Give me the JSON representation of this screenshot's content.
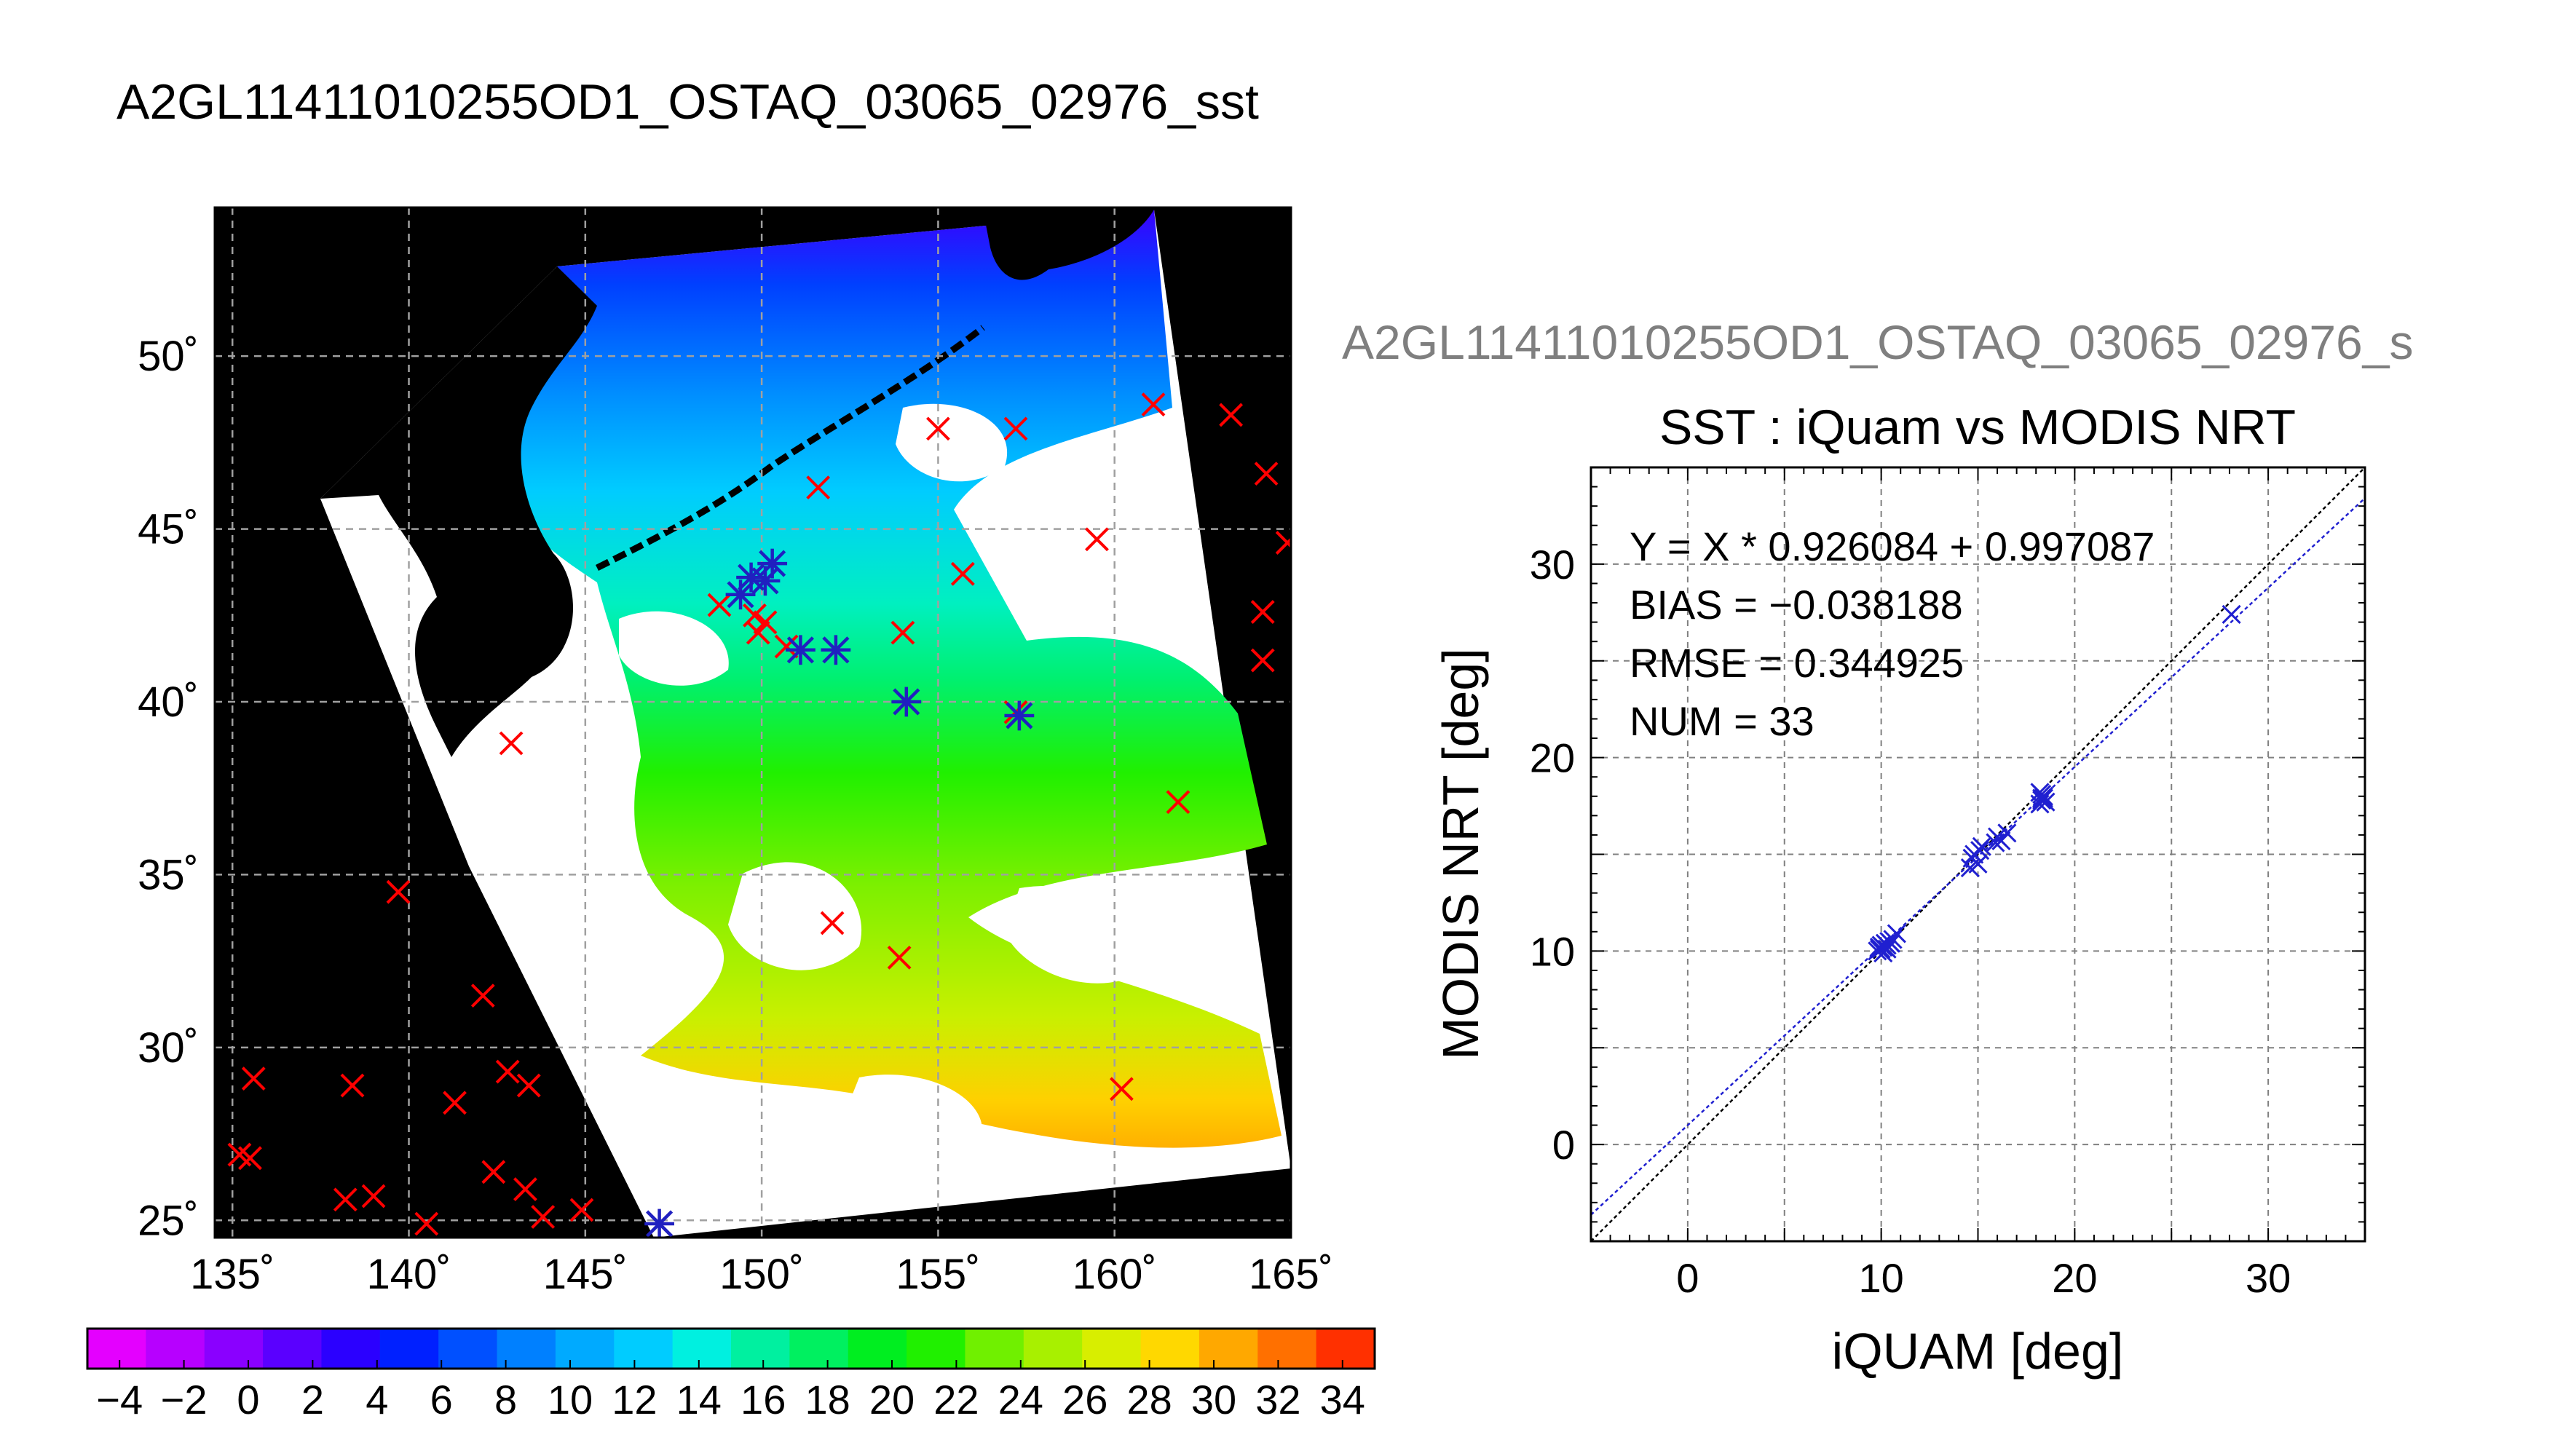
{
  "figure": {
    "main_title": "A2GL11411010255OD1_OSTAQ_03065_02976_sst",
    "secondary_title": "A2GL11411010255OD1_OSTAQ_03065_02976_s"
  },
  "chart_data": [
    {
      "type": "scatter",
      "panel": "map",
      "x_ticks": [
        "135˚",
        "140˚",
        "145˚",
        "150˚",
        "155˚",
        "160˚",
        "165˚"
      ],
      "y_ticks": [
        "25˚",
        "30˚",
        "35˚",
        "40˚",
        "45˚",
        "50˚"
      ],
      "xlim": [
        134.5,
        165
      ],
      "ylim": [
        24.5,
        54.3
      ],
      "grid": true,
      "colors": {
        "land": "#000000",
        "in_situ_marker": "#ff0000",
        "matched_marker": "#2020c0"
      },
      "colorbar": {
        "ticks": [
          "−4",
          "−2",
          "0",
          "2",
          "4",
          "6",
          "8",
          "10",
          "12",
          "14",
          "16",
          "18",
          "20",
          "22",
          "24",
          "26",
          "28",
          "30",
          "32",
          "34"
        ],
        "range": [
          -5,
          35
        ],
        "colors": [
          "#e400ff",
          "#b700ff",
          "#8a00ff",
          "#5a00ff",
          "#2b00ff",
          "#0020ff",
          "#0050ff",
          "#0080ff",
          "#00aaff",
          "#00ccff",
          "#00f0e0",
          "#00f0a0",
          "#00f060",
          "#00ee20",
          "#20f000",
          "#70f000",
          "#a8f000",
          "#d8ee00",
          "#ffd800",
          "#ffa800",
          "#ff7000",
          "#ff3000"
        ]
      },
      "red_markers": [
        [
          135.2,
          26.9
        ],
        [
          135.5,
          26.8
        ],
        [
          135.6,
          29.1
        ],
        [
          138.4,
          28.9
        ],
        [
          138.2,
          25.6
        ],
        [
          139.0,
          25.7
        ],
        [
          140.5,
          24.9
        ],
        [
          139.7,
          34.5
        ],
        [
          141.3,
          28.4
        ],
        [
          142.1,
          31.5
        ],
        [
          142.4,
          26.4
        ],
        [
          142.8,
          29.3
        ],
        [
          143.3,
          25.9
        ],
        [
          143.4,
          28.9
        ],
        [
          143.8,
          25.1
        ],
        [
          144.9,
          25.3
        ],
        [
          147.1,
          24.9
        ],
        [
          142.9,
          38.8
        ],
        [
          148.8,
          42.8
        ],
        [
          149.8,
          42.5
        ],
        [
          149.9,
          42.0
        ],
        [
          150.1,
          42.3
        ],
        [
          150.7,
          41.6
        ],
        [
          151.6,
          46.2
        ],
        [
          152.0,
          33.6
        ],
        [
          152.1,
          41.5
        ],
        [
          153.9,
          32.6
        ],
        [
          154.0,
          42.0
        ],
        [
          154.1,
          40.0
        ],
        [
          155.0,
          47.9
        ],
        [
          155.7,
          43.7
        ],
        [
          157.2,
          47.9
        ],
        [
          157.2,
          39.7
        ],
        [
          159.5,
          44.7
        ],
        [
          160.2,
          28.8
        ],
        [
          161.1,
          48.6
        ],
        [
          161.8,
          37.1
        ],
        [
          163.3,
          48.3
        ],
        [
          164.2,
          42.6
        ],
        [
          164.2,
          41.2
        ],
        [
          164.3,
          46.6
        ],
        [
          164.9,
          44.6
        ]
      ],
      "matched_points": [
        [
          147.1,
          24.9
        ],
        [
          149.4,
          43.1
        ],
        [
          149.7,
          43.6
        ],
        [
          150.1,
          43.5
        ],
        [
          150.3,
          44.0
        ],
        [
          151.1,
          41.5
        ],
        [
          152.1,
          41.5
        ],
        [
          154.1,
          40.0
        ],
        [
          157.3,
          39.6
        ]
      ]
    },
    {
      "type": "scatter",
      "panel": "regression",
      "title": "SST : iQuam vs MODIS NRT",
      "xlabel": "iQUAM [deg]",
      "ylabel": "MODIS NRT [deg]",
      "xlim": [
        -5,
        35
      ],
      "ylim": [
        -5,
        35
      ],
      "x_ticks": [
        "0",
        "10",
        "20",
        "30"
      ],
      "y_ticks": [
        "0",
        "10",
        "20",
        "30"
      ],
      "grid": true,
      "stats": {
        "equation": "Y = X * 0.926084 + 0.997087",
        "bias": "BIAS = −0.038188",
        "rmse": "RMSE = 0.344925",
        "num": "NUM = 33"
      },
      "fit": {
        "slope": 0.926084,
        "intercept": 0.997087
      },
      "colors": {
        "points": "#2020d0",
        "fit_line": "#2020d0",
        "identity_line": "#000000"
      },
      "points": [
        [
          9.8,
          10.0
        ],
        [
          9.9,
          10.1
        ],
        [
          10.0,
          10.3
        ],
        [
          10.1,
          10.2
        ],
        [
          10.1,
          9.9
        ],
        [
          10.2,
          10.4
        ],
        [
          10.3,
          10.1
        ],
        [
          10.4,
          10.5
        ],
        [
          10.5,
          10.4
        ],
        [
          10.6,
          10.6
        ],
        [
          10.8,
          10.9
        ],
        [
          14.6,
          14.3
        ],
        [
          14.8,
          15.0
        ],
        [
          15.0,
          14.5
        ],
        [
          15.2,
          15.4
        ],
        [
          15.9,
          15.6
        ],
        [
          16.0,
          15.9
        ],
        [
          16.5,
          16.1
        ],
        [
          18.2,
          17.6
        ],
        [
          18.3,
          17.8
        ],
        [
          18.3,
          18.1
        ],
        [
          18.4,
          17.9
        ],
        [
          18.2,
          18.2
        ],
        [
          18.5,
          17.7
        ],
        [
          18.4,
          18.0
        ],
        [
          28.1,
          27.4
        ],
        [
          10.0,
          10.1
        ],
        [
          9.9,
          10.2
        ],
        [
          14.7,
          14.8
        ],
        [
          15.1,
          15.2
        ],
        [
          18.3,
          17.9
        ],
        [
          10.3,
          10.3
        ],
        [
          16.2,
          15.7
        ]
      ]
    }
  ]
}
